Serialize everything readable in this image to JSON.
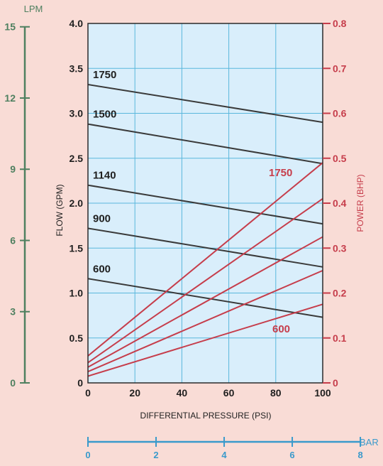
{
  "chart_data": {
    "type": "line",
    "xlabel": "DIFFERENTIAL PRESSURE  (PSI)",
    "x_ticks": [
      "0",
      "20",
      "40",
      "60",
      "80",
      "100"
    ],
    "xlim": [
      0,
      100
    ],
    "ylabel_left": "FLOW  (GPM)",
    "y_left_ticks": [
      "0",
      "0.5",
      "1.0",
      "1.5",
      "2.0",
      "2.5",
      "3.0",
      "3.5",
      "4.0"
    ],
    "ylim_left": [
      0,
      4.0
    ],
    "ylabel_right": "POWER  (BHP)",
    "y_right_ticks": [
      "0",
      "0.1",
      "0.2",
      "0.3",
      "0.4",
      "0.5",
      "0.6",
      "0.7",
      "0.8"
    ],
    "ylim_right": [
      0,
      0.8
    ],
    "lpm_axis": {
      "title": "LPM",
      "ticks": [
        "0",
        "3",
        "6",
        "9",
        "12",
        "15"
      ],
      "range": [
        0,
        15
      ]
    },
    "bar_axis": {
      "title": "BAR",
      "ticks": [
        "0",
        "2",
        "4",
        "6",
        "8"
      ],
      "range": [
        0,
        8
      ]
    },
    "grid": true,
    "flow_series": [
      {
        "name": "1750",
        "x": [
          0,
          100
        ],
        "y": [
          3.32,
          2.9
        ]
      },
      {
        "name": "1500",
        "x": [
          0,
          100
        ],
        "y": [
          2.88,
          2.44
        ]
      },
      {
        "name": "1140",
        "x": [
          0,
          100
        ],
        "y": [
          2.2,
          1.77
        ]
      },
      {
        "name": "900",
        "x": [
          0,
          100
        ],
        "y": [
          1.72,
          1.29
        ]
      },
      {
        "name": "600",
        "x": [
          0,
          100
        ],
        "y": [
          1.16,
          0.73
        ]
      }
    ],
    "power_series": [
      {
        "name": "1750",
        "x": [
          0,
          100
        ],
        "y": [
          0.06,
          0.49
        ]
      },
      {
        "name": "",
        "x": [
          0,
          100
        ],
        "y": [
          0.045,
          0.41
        ]
      },
      {
        "name": "",
        "x": [
          0,
          100
        ],
        "y": [
          0.035,
          0.325
        ]
      },
      {
        "name": "",
        "x": [
          0,
          100
        ],
        "y": [
          0.025,
          0.25
        ]
      },
      {
        "name": "600",
        "x": [
          0,
          100
        ],
        "y": [
          0.015,
          0.175
        ]
      }
    ]
  },
  "colors": {
    "plot_bg": "#d9eefb",
    "grid": "#5ab7dc",
    "flow_line": "#3a3a3a",
    "power_line": "#c63d4b",
    "lpm_axis": "#4f8060",
    "bar_axis": "#3a9acb",
    "text_dark": "#1f1f1f"
  }
}
